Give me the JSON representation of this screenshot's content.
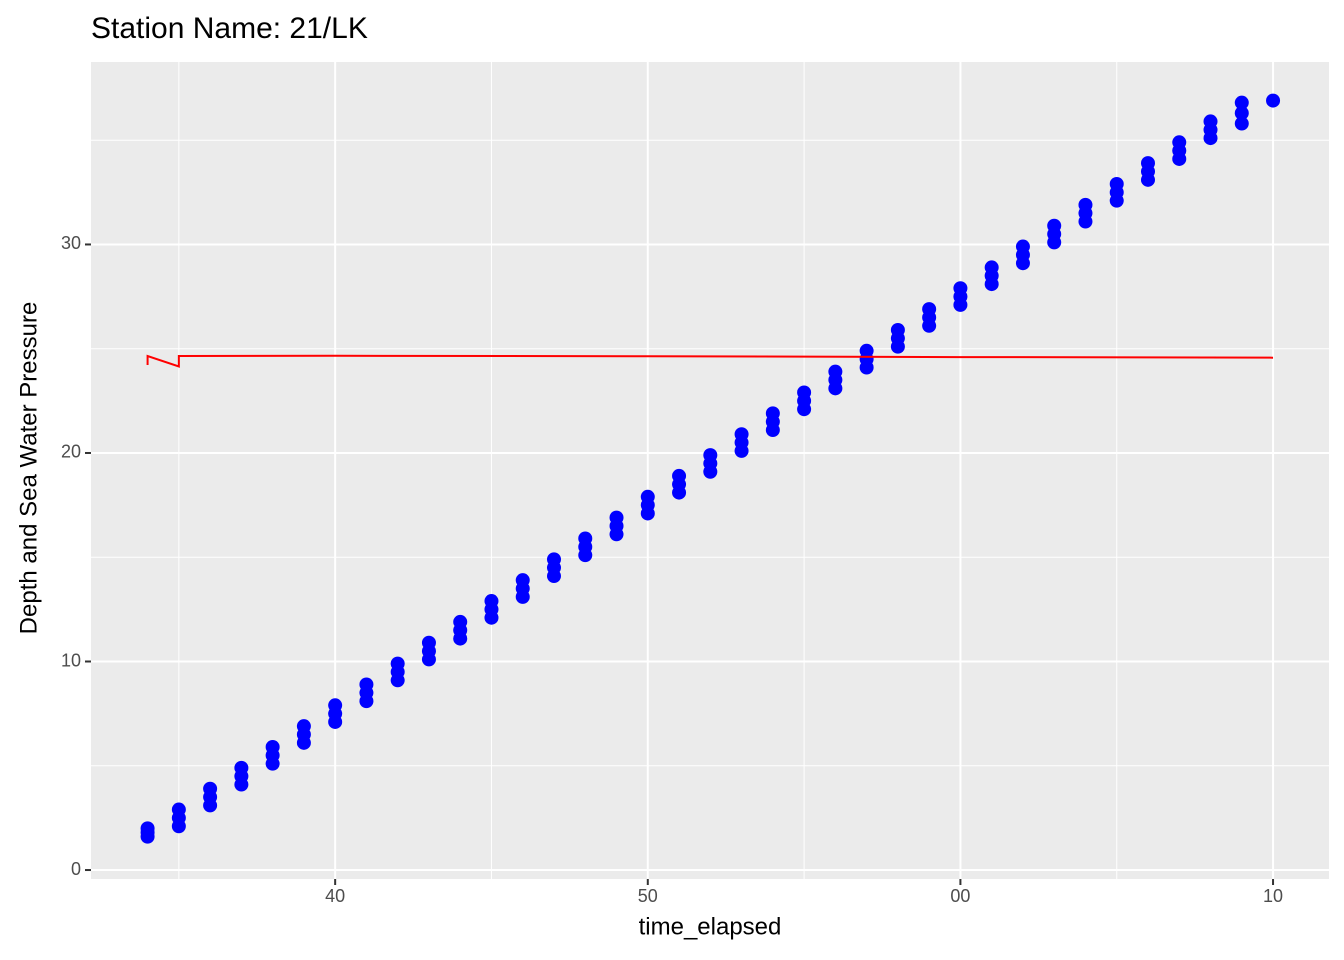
{
  "chart_data": {
    "type": "scatter",
    "title": "Station Name: 21/LK",
    "x_label": "time_elapsed",
    "y_label": "Depth and Sea Water Pressure",
    "xlim": [
      32.19,
      71.79
    ],
    "ylim": [
      -0.43,
      38.75
    ],
    "xticks": [
      40,
      50,
      {
        "value": 60,
        "label": "00"
      },
      {
        "value": 70,
        "label": "10"
      }
    ],
    "yticks": [
      0,
      10,
      20,
      30
    ],
    "grid": true,
    "series": [
      {
        "type": "scatter",
        "color": "#0000ff",
        "x": [
          34,
          34,
          34,
          35,
          35,
          35,
          36,
          36,
          36,
          37,
          37,
          37,
          38,
          38,
          38,
          39,
          39,
          39,
          40,
          40,
          40,
          41,
          41,
          41,
          42,
          42,
          42,
          43,
          43,
          43,
          44,
          44,
          44,
          45,
          45,
          45,
          46,
          46,
          46,
          47,
          47,
          47,
          48,
          48,
          48,
          49,
          49,
          49,
          50,
          50,
          50,
          51,
          51,
          51,
          52,
          52,
          52,
          53,
          53,
          53,
          54,
          54,
          54,
          55,
          55,
          55,
          56,
          56,
          56,
          57,
          57,
          57,
          58,
          58,
          58,
          59,
          59,
          59,
          60,
          60,
          60,
          61,
          61,
          61,
          62,
          62,
          62,
          63,
          63,
          63,
          64,
          64,
          64,
          65,
          65,
          65,
          66,
          66,
          66,
          67,
          67,
          67,
          68,
          68,
          68,
          69,
          69,
          69,
          70
        ],
        "values": [
          1.6,
          1.8,
          2,
          2.1,
          2.5,
          2.9,
          3.1,
          3.5,
          3.9,
          4.1,
          4.5,
          4.9,
          5.1,
          5.5,
          5.9,
          6.1,
          6.5,
          6.9,
          7.1,
          7.5,
          7.9,
          8.1,
          8.5,
          8.9,
          9.1,
          9.5,
          9.9,
          10.1,
          10.5,
          10.9,
          11.1,
          11.5,
          11.9,
          12.1,
          12.5,
          12.9,
          13.1,
          13.5,
          13.9,
          14.1,
          14.5,
          14.9,
          15.1,
          15.5,
          15.9,
          16.1,
          16.5,
          16.9,
          17.1,
          17.5,
          17.9,
          18.1,
          18.5,
          18.9,
          19.1,
          19.5,
          19.9,
          20.1,
          20.5,
          20.9,
          21.1,
          21.5,
          21.9,
          22.1,
          22.5,
          22.9,
          23.1,
          23.5,
          23.9,
          24.1,
          24.5,
          24.9,
          25.1,
          25.5,
          25.9,
          26.1,
          26.5,
          26.9,
          27.1,
          27.5,
          27.9,
          28.1,
          28.5,
          28.9,
          29.1,
          29.5,
          29.9,
          30.1,
          30.5,
          30.9,
          31.1,
          31.5,
          31.9,
          32.1,
          32.5,
          32.9,
          33.1,
          33.5,
          33.9,
          34.1,
          34.5,
          34.9,
          35.1,
          35.5,
          35.9,
          35.8,
          36.3,
          36.8,
          36.9
        ]
      },
      {
        "type": "line",
        "color": "#ff0000",
        "x": [
          34,
          34,
          35,
          35,
          40,
          50,
          60,
          70
        ],
        "values": [
          24.22,
          24.65,
          24.15,
          24.65,
          24.66,
          24.64,
          24.6,
          24.57
        ]
      }
    ]
  }
}
